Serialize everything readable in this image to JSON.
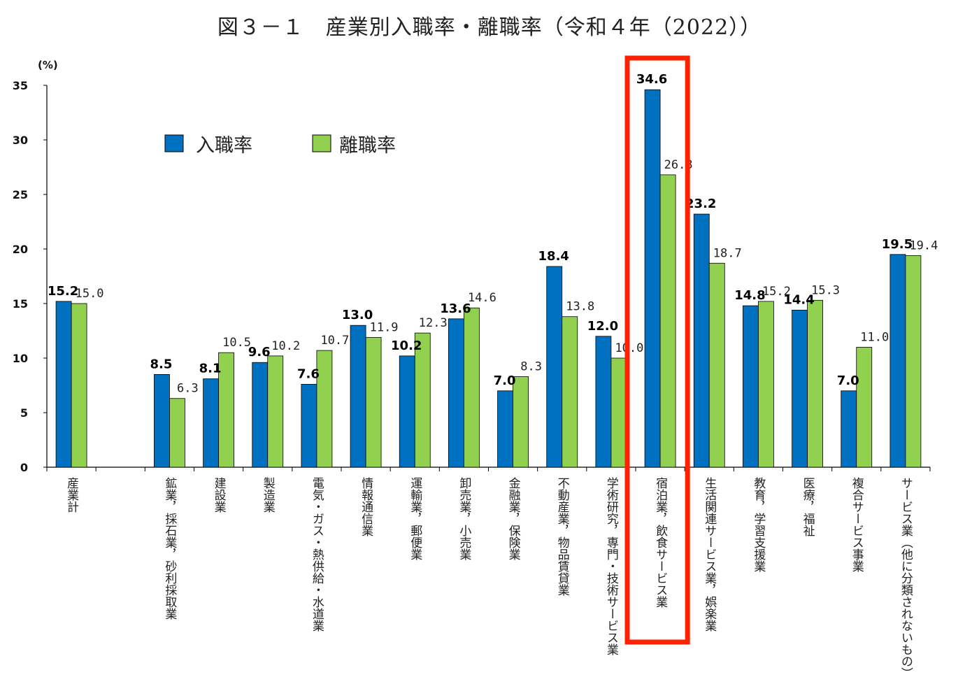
{
  "title": "図３－１　産業別入職率・離職率（令和４年（2022））",
  "chart_data": {
    "type": "bar",
    "title": "図３－１　産業別入職率・離職率（令和４年（2022））",
    "ylabel": "(%)",
    "ylim": [
      0,
      35
    ],
    "yticks": [
      "0",
      "5",
      "10",
      "15",
      "20",
      "25",
      "30",
      "35"
    ],
    "legend_position": "top-left",
    "categories": [
      "産業計",
      "",
      "鉱業，採石業，砂利採取業",
      "建設業",
      "製造業",
      "電気・ガス・熱供給・水道業",
      "情報通信業",
      "運輸業，郵便業",
      "卸売業，小売業",
      "金融業，保険業",
      "不動産業，物品賃貸業",
      "学術研究，専門・技術サービス業",
      "宿泊業，飲食サービス業",
      "生活関連サービス業，娯楽業",
      "教育，学習支援業",
      "医療，福祉",
      "複合サービス事業",
      "サービス業（他に分類されないもの）"
    ],
    "series": [
      {
        "name": "入職率",
        "color": "#0070C0",
        "values": [
          15.2,
          null,
          8.5,
          8.1,
          9.6,
          7.6,
          13.0,
          10.2,
          13.6,
          7.0,
          18.4,
          12.0,
          34.6,
          23.2,
          14.8,
          14.4,
          7.0,
          19.5
        ],
        "labels": [
          "15.2",
          "",
          "8.5",
          "8.1",
          "9.6",
          "7.6",
          "13.0",
          "10.2",
          "13.6",
          "7.0",
          "18.4",
          "12.0",
          "34.6",
          "23.2",
          "14.8",
          "14.4",
          "7.0",
          "19.5"
        ]
      },
      {
        "name": "離職率",
        "color": "#92D050",
        "values": [
          15.0,
          null,
          6.3,
          10.5,
          10.2,
          10.7,
          11.9,
          12.3,
          14.6,
          8.3,
          13.8,
          10.0,
          26.8,
          18.7,
          15.2,
          15.3,
          11.0,
          19.4
        ],
        "labels": [
          "15.0",
          "",
          "6.3",
          "10.5",
          "10.2",
          "10.7",
          "11.9",
          "12.3",
          "14.6",
          "8.3",
          "13.8",
          "10.0",
          "26.8",
          "18.7",
          "15.2",
          "15.3",
          "11.0",
          "19.4"
        ]
      }
    ],
    "highlight": {
      "category": "宿泊業，飲食サービス業",
      "color": "#FF2200"
    }
  }
}
